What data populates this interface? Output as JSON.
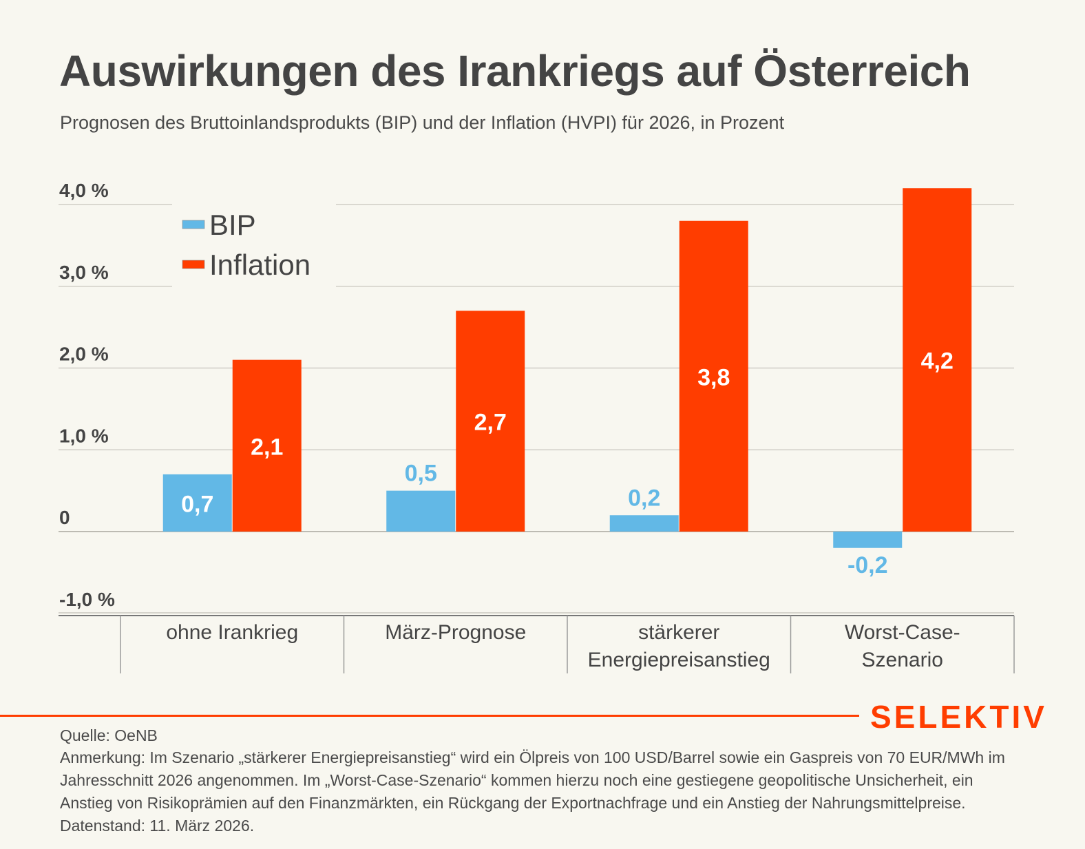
{
  "header": {
    "title": "Auswirkungen des Irankriegs auf Österreich",
    "subtitle": "Prognosen des Bruttoinlandsprodukts (BIP) und der Inflation (HVPI) für 2026, in Prozent"
  },
  "chart_data": {
    "type": "bar",
    "title": "Auswirkungen des Irankriegs auf Österreich",
    "subtitle": "Prognosen des Bruttoinlandsprodukts (BIP) und der Inflation (HVPI) für 2026, in Prozent",
    "xlabel": "",
    "ylabel": "",
    "categories": [
      [
        "ohne Irankrieg"
      ],
      [
        "März-Prognose"
      ],
      [
        "stärkerer",
        "Energiepreisanstieg"
      ],
      [
        "Worst-Case-",
        "Szenario"
      ]
    ],
    "series": [
      {
        "name": "BIP",
        "color": "#62b8e6",
        "values": [
          0.7,
          0.5,
          0.2,
          -0.2
        ],
        "labels": [
          "0,7",
          "0,5",
          "0,2",
          "-0,2"
        ]
      },
      {
        "name": "Inflation",
        "color": "#ff3d00",
        "values": [
          2.1,
          2.7,
          3.8,
          4.2
        ],
        "labels": [
          "2,1",
          "2,7",
          "3,8",
          "4,2"
        ]
      }
    ],
    "ylim": [
      -1.0,
      4.0
    ],
    "yticks": [
      4.0,
      3.0,
      2.0,
      1.0,
      0,
      -1.0
    ],
    "ytick_labels": [
      "4,0 %",
      "3,0 %",
      "2,0 %",
      "1,0 %",
      "0",
      "-1,0 %"
    ],
    "grid": true,
    "legend": {
      "position": "top-left",
      "entries": [
        "BIP",
        "Inflation"
      ]
    }
  },
  "footer": {
    "brand": "SELEKTIV",
    "source": "Quelle: OeNB",
    "note": "Anmerkung: Im Szenario „stärkerer Energiepreisanstieg“ wird ein Ölpreis von 100 USD/Barrel sowie ein Gaspreis von 70 EUR/MWh im Jahresschnitt 2026 angenommen. Im „Worst-Case-Szenario“ kommen hierzu noch eine gestiegene geopolitische Unsicherheit, ein Anstieg von Risikoprämien auf den Finanzmärkten, ein Rückgang der Exportnachfrage und ein Anstieg der Nahrungsmittelpreise. Datenstand: 11. März 2026."
  }
}
